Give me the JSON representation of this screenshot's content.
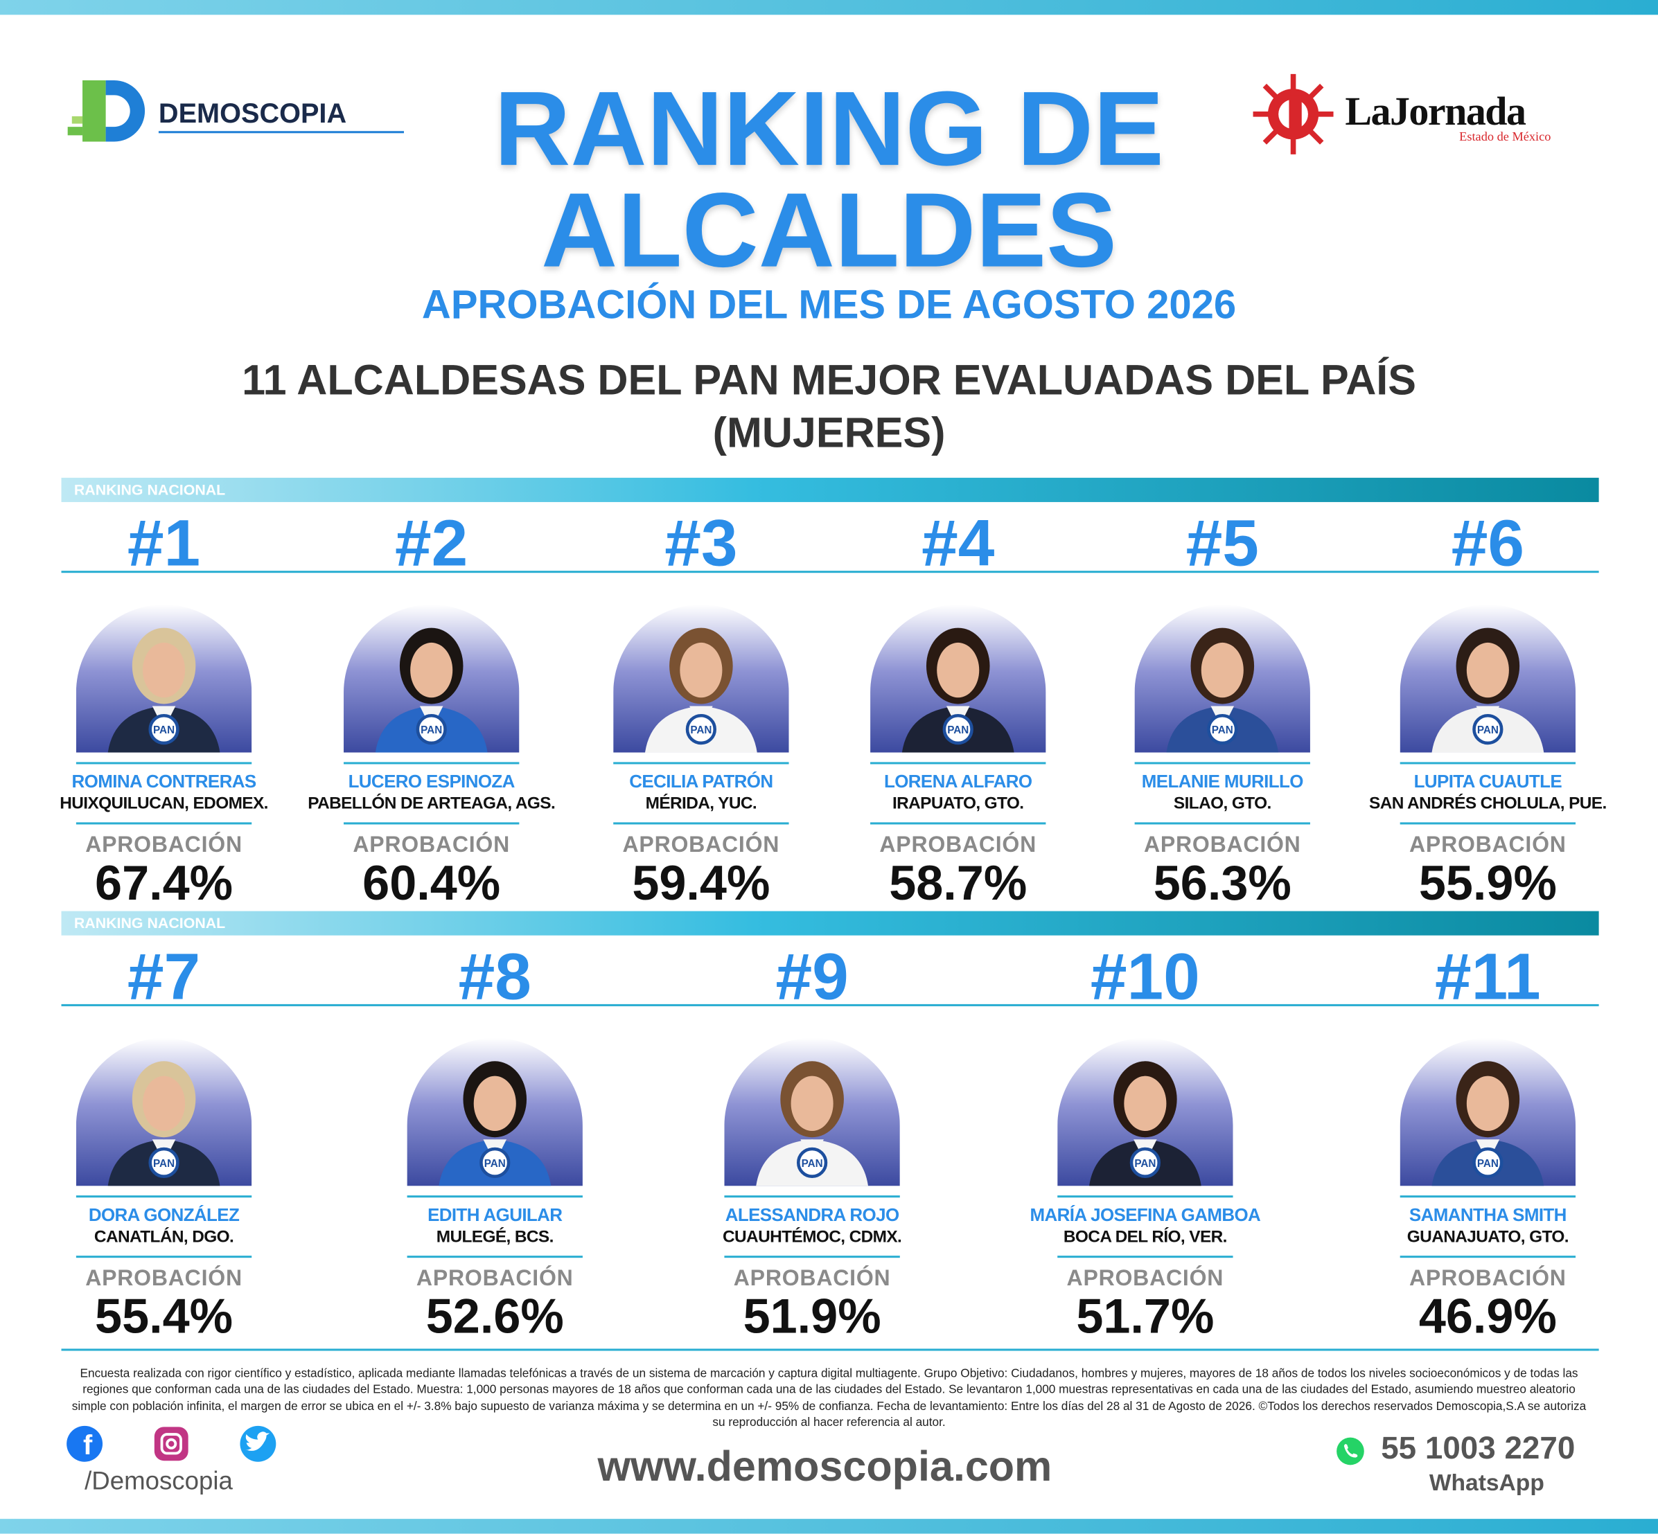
{
  "header": {
    "brand_left": "DEMOSCOPIA",
    "brand_right": "LaJornada",
    "brand_right_sub": "Estado de México",
    "title_line1": "RANKING DE",
    "title_line2": "ALCALDES",
    "subtitle": "APROBACIÓN DEL MES DE AGOSTO 2026",
    "heading": "11 ALCALDESAS DEL PAN MEJOR EVALUADAS DEL PAÍS",
    "heading_sub": "(MUJERES)"
  },
  "approval_label": "APROBACIÓN",
  "badge": "PAN",
  "rows": [
    {
      "label": "RANKING NACIONAL",
      "items": [
        {
          "rank": "#1",
          "name": "ROMINA CONTRERAS",
          "place": "HUIXQUILUCAN, EDOMEX.",
          "approval": "67.4%"
        },
        {
          "rank": "#2",
          "name": "LUCERO ESPINOZA",
          "place": "PABELLÓN DE ARTEAGA, AGS.",
          "approval": "60.4%"
        },
        {
          "rank": "#3",
          "name": "CECILIA PATRÓN",
          "place": "MÉRIDA, YUC.",
          "approval": "59.4%"
        },
        {
          "rank": "#4",
          "name": "LORENA ALFARO",
          "place": "IRAPUATO, GTO.",
          "approval": "58.7%"
        },
        {
          "rank": "#5",
          "name": "MELANIE MURILLO",
          "place": "SILAO, GTO.",
          "approval": "56.3%"
        },
        {
          "rank": "#6",
          "name": "LUPITA CUAUTLE",
          "place": "SAN ANDRÉS CHOLULA, PUE.",
          "approval": "55.9%"
        }
      ]
    },
    {
      "label": "RANKING NACIONAL",
      "items": [
        {
          "rank": "#7",
          "name": "DORA GONZÁLEZ",
          "place": "CANATLÁN, DGO.",
          "approval": "55.4%"
        },
        {
          "rank": "#8",
          "name": "EDITH AGUILAR",
          "place": "MULEGÉ, BCS.",
          "approval": "52.6%"
        },
        {
          "rank": "#9",
          "name": "ALESSANDRA ROJO",
          "place": "CUAUHTÉMOC, CDMX.",
          "approval": "51.9%"
        },
        {
          "rank": "#10",
          "name": "MARÍA JOSEFINA GAMBOA",
          "place": "BOCA DEL RÍO, VER.",
          "approval": "51.7%"
        },
        {
          "rank": "#11",
          "name": "SAMANTHA SMITH",
          "place": "GUANAJUATO, GTO.",
          "approval": "46.9%"
        }
      ]
    }
  ],
  "footer": {
    "disclaimer": "Encuesta realizada con rigor científico y estadístico, aplicada mediante llamadas telefónicas a través de un sistema de marcación y captura digital multiagente. Grupo Objetivo: Ciudadanos, hombres y mujeres, mayores de 18 años de todos los niveles socioeconómicos y de todas las regiones que conforman cada una de las ciudades del Estado. Muestra: 1,000 personas mayores de 18 años que conforman cada una de las ciudades del Estado. Se levantaron 1,000 muestras representativas en cada una de las ciudades del Estado, asumiendo muestreo aleatorio simple con población infinita, el margen de error se ubica en el +/- 3.8% bajo supuesto de varianza máxima y se determina en un +/- 95% de confianza. Fecha de levantamiento: Entre los días del 28 al 31 de Agosto de 2026. ©Todos los derechos reservados Demoscopia,S.A se autoriza su reproducción al hacer referencia al autor.",
    "social_handle": "/Demoscopia",
    "website": "www.demoscopia.com",
    "phone": "55 1003 2270",
    "phone_label": "WhatsApp"
  }
}
